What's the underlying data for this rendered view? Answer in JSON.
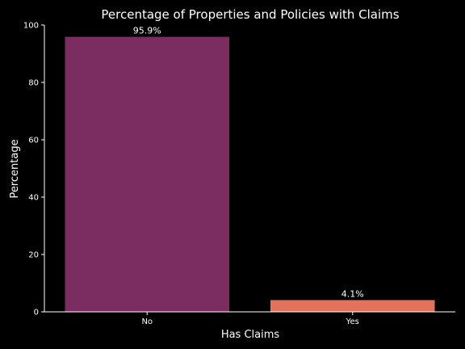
{
  "chart_data": {
    "type": "bar",
    "title": "Percentage of Properties and Policies with Claims",
    "xlabel": "Has Claims",
    "ylabel": "Percentage",
    "categories": [
      "No",
      "Yes"
    ],
    "values": [
      95.9,
      4.1
    ],
    "value_labels": [
      "95.9%",
      "4.1%"
    ],
    "colors": [
      "#7a2d5e",
      "#e2725b"
    ],
    "ylim": [
      0,
      100
    ],
    "yticks": [
      0,
      20,
      40,
      60,
      80,
      100
    ],
    "grid": false,
    "legend": "none"
  }
}
